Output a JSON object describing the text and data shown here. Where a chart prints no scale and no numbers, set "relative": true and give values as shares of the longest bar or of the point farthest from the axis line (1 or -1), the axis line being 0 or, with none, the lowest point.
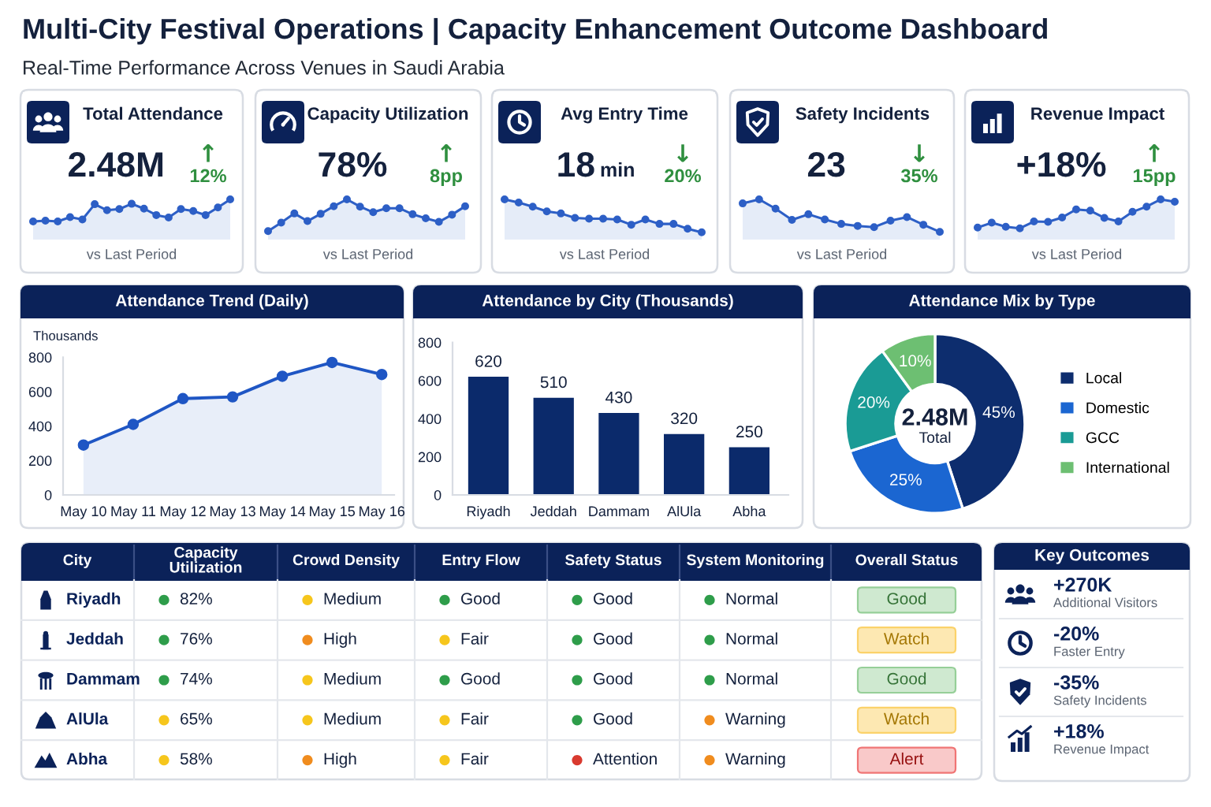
{
  "chart_data": [
    {
      "type": "other",
      "title": "Multi-City Festival Operations | Capacity Enhancement Outcome Dashboard",
      "subtitle": "Real-Time Performance Across Venues in Saudi Arabia"
    },
    {
      "type": "area",
      "relative": true,
      "title": "Total Attendance",
      "categories": [
        null,
        null,
        null,
        null,
        null,
        null,
        null,
        null,
        null,
        null,
        null,
        null,
        null,
        null,
        null,
        null,
        null
      ],
      "values": [
        0.45,
        0.47,
        0.45,
        0.56,
        0.5,
        0.88,
        0.73,
        0.76,
        0.89,
        0.77,
        0.61,
        0.55,
        0.76,
        0.71,
        0.61,
        0.8,
        1
      ],
      "color": "#2d5fc6",
      "marker": "circle",
      "xlabel": "vs Last Period",
      "annotations": [
        "2.48M",
        "↑",
        "12%"
      ]
    },
    {
      "type": "area",
      "relative": true,
      "title": "Capacity Utilization",
      "categories": [
        null,
        null,
        null,
        null,
        null,
        null,
        null,
        null,
        null,
        null,
        null,
        null,
        null,
        null,
        null,
        null
      ],
      "values": [
        0.21,
        0.42,
        0.65,
        0.46,
        0.64,
        0.83,
        1,
        0.82,
        0.68,
        0.78,
        0.78,
        0.63,
        0.53,
        0.44,
        0.62,
        0.83
      ],
      "color": "#2d5fc6",
      "marker": "circle",
      "xlabel": "vs Last Period",
      "annotations": [
        "78%",
        "↑",
        "8pp"
      ]
    },
    {
      "type": "area",
      "relative": true,
      "title": "Avg Entry Time",
      "categories": [
        null,
        null,
        null,
        null,
        null,
        null,
        null,
        null,
        null,
        null,
        null,
        null,
        null,
        null,
        null
      ],
      "values": [
        1,
        0.92,
        0.82,
        0.7,
        0.65,
        0.54,
        0.52,
        0.52,
        0.5,
        0.37,
        0.5,
        0.39,
        0.39,
        0.27,
        0.18
      ],
      "color": "#2d5fc6",
      "marker": "circle",
      "xlabel": "vs Last Period",
      "annotations": [
        "18",
        "min",
        "↓",
        "20%"
      ]
    },
    {
      "type": "area",
      "relative": true,
      "title": "Safety Incidents",
      "categories": [
        null,
        null,
        null,
        null,
        null,
        null,
        null,
        null,
        null,
        null,
        null,
        null,
        null
      ],
      "values": [
        0.9,
        1,
        0.77,
        0.49,
        0.63,
        0.5,
        0.39,
        0.34,
        0.31,
        0.47,
        0.56,
        0.37,
        0.19
      ],
      "color": "#2d5fc6",
      "marker": "circle",
      "xlabel": "vs Last Period",
      "annotations": [
        "23",
        "↓",
        "35%"
      ]
    },
    {
      "type": "area",
      "relative": true,
      "title": "Revenue Impact",
      "categories": [
        null,
        null,
        null,
        null,
        null,
        null,
        null,
        null,
        null,
        null,
        null,
        null,
        null,
        null,
        null
      ],
      "values": [
        0.3,
        0.42,
        0.32,
        0.28,
        0.45,
        0.44,
        0.55,
        0.75,
        0.72,
        0.54,
        0.45,
        0.69,
        0.82,
        1,
        0.94
      ],
      "color": "#2d5fc6",
      "marker": "circle",
      "xlabel": "vs Last Period",
      "annotations": [
        "+18%",
        "↑",
        "15pp"
      ]
    },
    {
      "type": "area",
      "title": "Attendance Trend (Daily)",
      "ylabel": "Thousands",
      "categories": [
        "May 10",
        "May 11",
        "May 12",
        "May 13",
        "May 14",
        "May 15",
        "May 16"
      ],
      "values": [
        290,
        410,
        560,
        570,
        690,
        770,
        700
      ],
      "color": "#1f56c4",
      "marker": "circle",
      "ylim": [
        0,
        800
      ],
      "yticks": [
        0,
        200,
        400,
        600,
        800
      ]
    },
    {
      "type": "bar",
      "title": "Attendance by City (Thousands)",
      "categories": [
        "Riyadh",
        "Jeddah",
        "Dammam",
        "AlUla",
        "Abha"
      ],
      "values": [
        620,
        510,
        430,
        320,
        250
      ],
      "color": "#0b2a6b",
      "ylim": [
        0,
        800
      ],
      "yticks": [
        0,
        200,
        400,
        600,
        800
      ],
      "data_labels": true
    },
    {
      "type": "donut",
      "title": "Attendance Mix by Type",
      "categories": [
        "Local",
        "Domestic",
        "GCC",
        "International"
      ],
      "values": [
        45,
        25,
        20,
        10
      ],
      "colors": [
        "#0d2d6e",
        "#1b66d1",
        "#1a9b95",
        "#6dbf72"
      ],
      "value_labels": [
        "45%",
        "25%",
        "20%",
        "10%"
      ],
      "legend": "right",
      "annotations": [
        "2.48M",
        "Total"
      ]
    },
    {
      "type": "other",
      "categories": [
        "City",
        "Capacity Utilization",
        "Crowd Density",
        "Entry Flow",
        "Safety Status",
        "System Monitoring",
        "Overall Status"
      ],
      "y_categories": [
        "Riyadh",
        "Jeddah",
        "Dammam",
        "AlUla",
        "Abha"
      ],
      "cell_labels": [
        [
          "82%",
          "Medium",
          "Good",
          "Good",
          "Normal",
          "Good"
        ],
        [
          "76%",
          "High",
          "Fair",
          "Good",
          "Normal",
          "Watch"
        ],
        [
          "74%",
          "Medium",
          "Good",
          "Good",
          "Normal",
          "Good"
        ],
        [
          "65%",
          "Medium",
          "Fair",
          "Good",
          "Warning",
          "Watch"
        ],
        [
          "58%",
          "High",
          "Fair",
          "Attention",
          "Warning",
          "Alert"
        ]
      ]
    },
    {
      "type": "other",
      "title": "Key Outcomes",
      "annotations": [
        "+270K",
        "Additional Visitors",
        "-20%",
        "Faster Entry",
        "-35%",
        "Safety Incidents",
        "+18%",
        "Revenue Impact"
      ]
    }
  ]
}
